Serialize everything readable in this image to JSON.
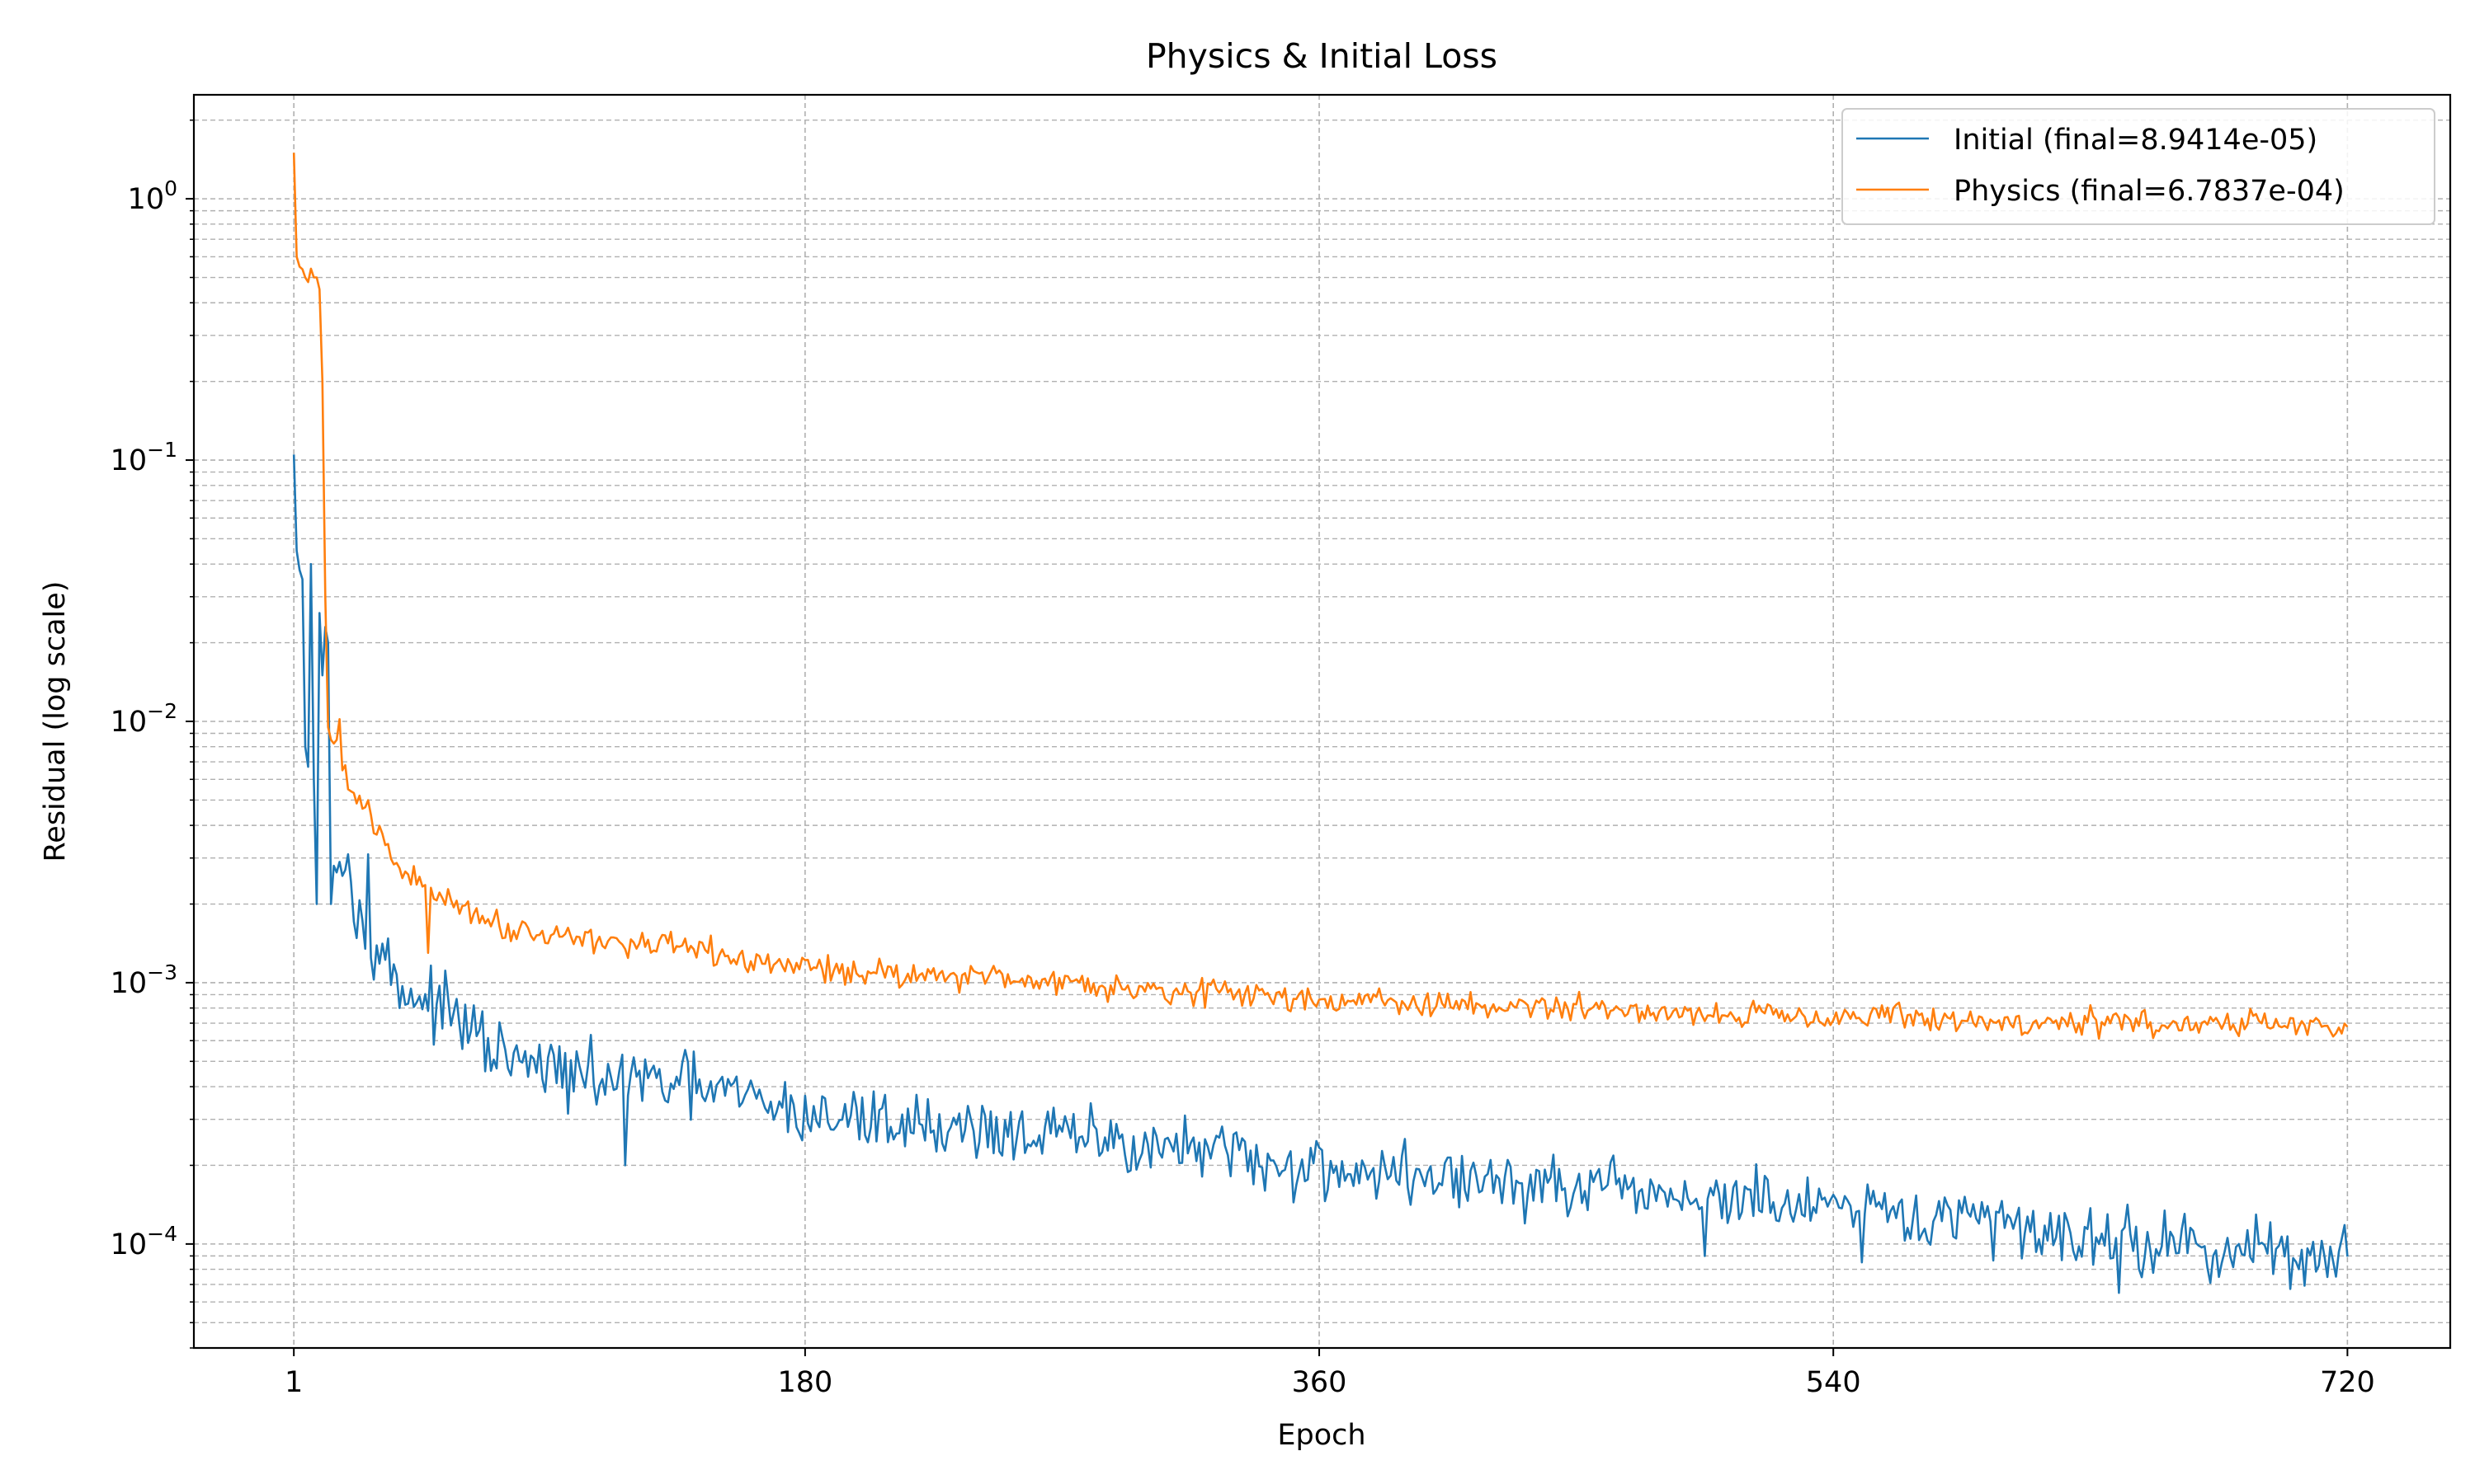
{
  "chart_data": {
    "type": "line",
    "title": "Physics & Initial Loss",
    "xlabel": "Epoch",
    "ylabel": "Residual (log scale)",
    "yscale": "log",
    "xlim": [
      -34,
      756
    ],
    "ylim": [
      4e-05,
      2.5
    ],
    "xticks": [
      1,
      180,
      360,
      540,
      720
    ],
    "yticks": [
      {
        "value": 1,
        "base": "10",
        "exp": "0"
      },
      {
        "value": 0.1,
        "base": "10",
        "exp": "−1"
      },
      {
        "value": 0.01,
        "base": "10",
        "exp": "−2"
      },
      {
        "value": 0.001,
        "base": "10",
        "exp": "−3"
      },
      {
        "value": 0.0001,
        "base": "10",
        "exp": "−4"
      }
    ],
    "grid": "major and minor, dashed",
    "legend_position": "upper right",
    "series": [
      {
        "name": "Initial (final=8.9414e-05)",
        "color": "#1f77b4",
        "x_range": [
          1,
          720
        ],
        "noise": 0.06,
        "anchors": [
          [
            1,
            0.105
          ],
          [
            2,
            0.045
          ],
          [
            3,
            0.038
          ],
          [
            4,
            0.035
          ],
          [
            5,
            0.008
          ],
          [
            6,
            0.0067
          ],
          [
            7,
            0.04
          ],
          [
            8,
            0.006
          ],
          [
            9,
            0.002
          ],
          [
            10,
            0.026
          ],
          [
            11,
            0.015
          ],
          [
            12,
            0.023
          ],
          [
            13,
            0.02
          ],
          [
            14,
            0.004
          ],
          [
            15,
            0.0028
          ],
          [
            17,
            0.0029
          ],
          [
            19,
            0.0027
          ],
          [
            20,
            0.0031
          ],
          [
            22,
            0.0019
          ],
          [
            25,
            0.0017
          ],
          [
            30,
            0.0015
          ],
          [
            35,
            0.0011
          ],
          [
            40,
            0.00095
          ],
          [
            50,
            0.00082
          ],
          [
            60,
            0.0007
          ],
          [
            70,
            0.00055
          ],
          [
            80,
            0.00048
          ],
          [
            90,
            0.00047
          ],
          [
            100,
            0.00043
          ],
          [
            120,
            0.00042
          ],
          [
            140,
            0.0004
          ],
          [
            160,
            0.00036
          ],
          [
            180,
            0.00031
          ],
          [
            200,
            0.0003
          ],
          [
            250,
            0.00027
          ],
          [
            300,
            0.00024
          ],
          [
            350,
            0.0002
          ],
          [
            400,
            0.00018
          ],
          [
            450,
            0.00016
          ],
          [
            500,
            0.00015
          ],
          [
            550,
            0.00013
          ],
          [
            600,
            0.00012
          ],
          [
            650,
            0.0001
          ],
          [
            700,
            9.2e-05
          ],
          [
            720,
            8.94e-05
          ]
        ],
        "spikes": [
          [
            7,
            0.04
          ],
          [
            10,
            0.026
          ],
          [
            14,
            0.002
          ],
          [
            27,
            0.0031
          ],
          [
            38,
            0.0008
          ],
          [
            116,
            0.00053
          ],
          [
            117,
            0.0002
          ],
          [
            163,
            0.00036
          ],
          [
            243,
            0.00031
          ],
          [
            341,
            0.00016
          ],
          [
            495,
            9e-05
          ],
          [
            550,
            8.5e-05
          ],
          [
            636,
            0.00013
          ],
          [
            640,
            6.5e-05
          ],
          [
            716,
            7.5e-05
          ]
        ]
      },
      {
        "name": "Physics (final=6.7837e-04)",
        "color": "#ff7f0e",
        "x_range": [
          1,
          720
        ],
        "noise": 0.025,
        "anchors": [
          [
            1,
            1.5
          ],
          [
            2,
            0.6
          ],
          [
            3,
            0.55
          ],
          [
            5,
            0.5
          ],
          [
            6,
            0.48
          ],
          [
            7,
            0.54
          ],
          [
            8,
            0.5
          ],
          [
            9,
            0.5
          ],
          [
            10,
            0.45
          ],
          [
            11,
            0.2
          ],
          [
            12,
            0.03
          ],
          [
            13,
            0.0095
          ],
          [
            14,
            0.0085
          ],
          [
            16,
            0.0085
          ],
          [
            17,
            0.01
          ],
          [
            18,
            0.0065
          ],
          [
            20,
            0.0055
          ],
          [
            24,
            0.0048
          ],
          [
            28,
            0.0044
          ],
          [
            30,
            0.0038
          ],
          [
            35,
            0.003
          ],
          [
            40,
            0.0026
          ],
          [
            50,
            0.0022
          ],
          [
            60,
            0.002
          ],
          [
            70,
            0.0017
          ],
          [
            80,
            0.0016
          ],
          [
            100,
            0.0015
          ],
          [
            120,
            0.0014
          ],
          [
            140,
            0.00135
          ],
          [
            160,
            0.0012
          ],
          [
            180,
            0.00115
          ],
          [
            200,
            0.0011
          ],
          [
            250,
            0.00105
          ],
          [
            300,
            0.00095
          ],
          [
            350,
            0.00088
          ],
          [
            400,
            0.00082
          ],
          [
            450,
            0.0008
          ],
          [
            500,
            0.00076
          ],
          [
            550,
            0.00075
          ],
          [
            600,
            0.0007
          ],
          [
            650,
            0.0007
          ],
          [
            700,
            0.00069
          ],
          [
            720,
            0.00067837
          ]
        ],
        "spikes": [
          [
            17,
            0.0102
          ],
          [
            19,
            0.0068
          ],
          [
            48,
            0.0013
          ],
          [
            116,
            0.0014
          ],
          [
            630,
            0.00082
          ]
        ]
      }
    ]
  }
}
